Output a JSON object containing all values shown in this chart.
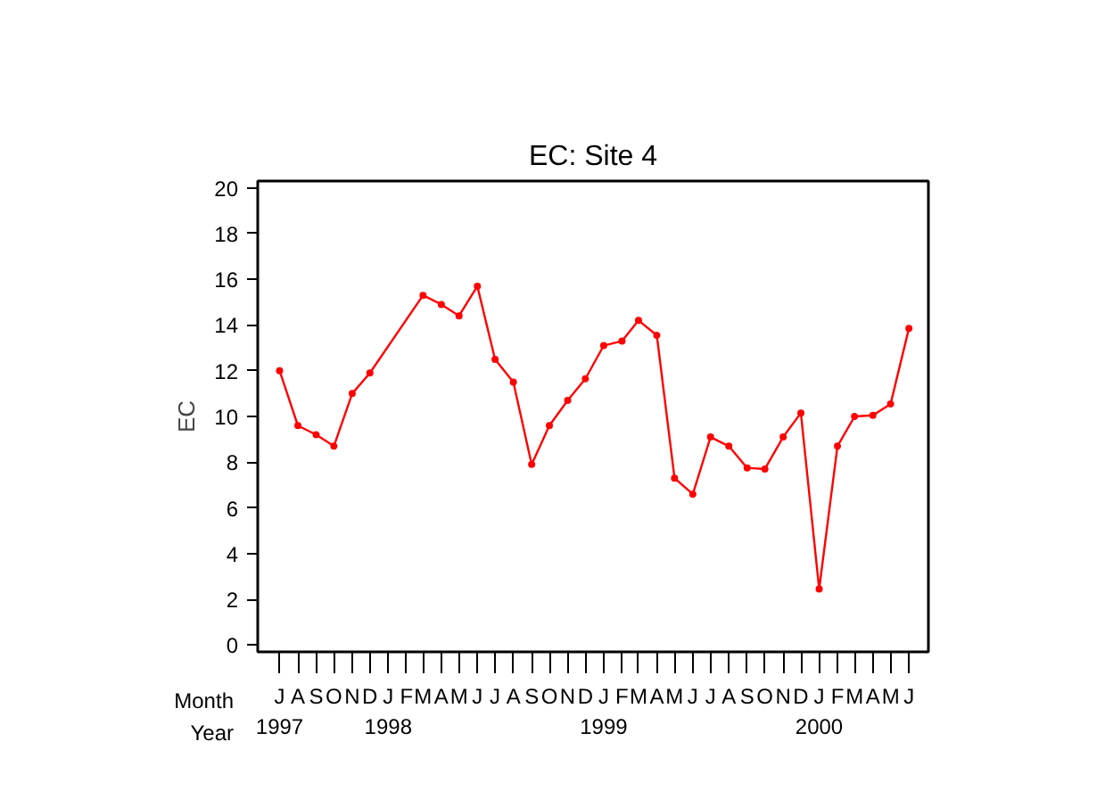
{
  "chart_data": {
    "type": "line",
    "title": "EC: Site 4",
    "ylabel": "EC",
    "annotations": [
      "Month",
      "Year"
    ],
    "x": [
      "1997-07",
      "1997-08",
      "1997-09",
      "1997-10",
      "1997-11",
      "1997-12",
      "1998-03",
      "1998-04",
      "1998-05",
      "1998-06",
      "1998-07",
      "1998-08",
      "1998-09",
      "1998-10",
      "1998-11",
      "1998-12",
      "1999-01",
      "1999-02",
      "1999-03",
      "1999-04",
      "1999-05",
      "1999-06",
      "1999-07",
      "1999-08",
      "1999-09",
      "1999-10",
      "1999-11",
      "1999-12",
      "2000-01",
      "2000-02",
      "2000-03",
      "2000-04",
      "2000-05",
      "2000-06"
    ],
    "series": [
      {
        "color": "#ff0000",
        "values": [
          12.0,
          9.6,
          9.2,
          8.7,
          11.0,
          11.9,
          15.3,
          14.9,
          14.4,
          15.7,
          12.5,
          11.5,
          7.9,
          9.6,
          10.7,
          11.65,
          13.1,
          13.3,
          14.2,
          13.55,
          7.3,
          6.6,
          9.1,
          8.7,
          7.75,
          7.7,
          9.1,
          10.15,
          2.45,
          8.7,
          10.0,
          10.05,
          10.55,
          13.85
        ]
      }
    ],
    "xlim": [
      "1997-05-25",
      "2000-07-04"
    ],
    "xticks": [
      {
        "value": "1997-07",
        "label": "J\n1997"
      },
      {
        "value": "1997-08",
        "label": "A"
      },
      {
        "value": "1997-09",
        "label": "S"
      },
      {
        "value": "1997-10",
        "label": "O"
      },
      {
        "value": "1997-11",
        "label": "N"
      },
      {
        "value": "1997-12",
        "label": "D"
      },
      {
        "value": "1998-01",
        "label": "J\n1998"
      },
      {
        "value": "1998-02",
        "label": "F"
      },
      {
        "value": "1998-03",
        "label": "M"
      },
      {
        "value": "1998-04",
        "label": "A"
      },
      {
        "value": "1998-05",
        "label": "M"
      },
      {
        "value": "1998-06",
        "label": "J"
      },
      {
        "value": "1998-07",
        "label": "J"
      },
      {
        "value": "1998-08",
        "label": "A"
      },
      {
        "value": "1998-09",
        "label": "S"
      },
      {
        "value": "1998-10",
        "label": "O"
      },
      {
        "value": "1998-11",
        "label": "N"
      },
      {
        "value": "1998-12",
        "label": "D"
      },
      {
        "value": "1999-01",
        "label": "J\n1999"
      },
      {
        "value": "1999-02",
        "label": "F"
      },
      {
        "value": "1999-03",
        "label": "M"
      },
      {
        "value": "1999-04",
        "label": "A"
      },
      {
        "value": "1999-05",
        "label": "M"
      },
      {
        "value": "1999-06",
        "label": "J"
      },
      {
        "value": "1999-07",
        "label": "J"
      },
      {
        "value": "1999-08",
        "label": "A"
      },
      {
        "value": "1999-09",
        "label": "S"
      },
      {
        "value": "1999-10",
        "label": "O"
      },
      {
        "value": "1999-11",
        "label": "N"
      },
      {
        "value": "1999-12",
        "label": "D"
      },
      {
        "value": "2000-01",
        "label": "J\n2000"
      },
      {
        "value": "2000-02",
        "label": "F"
      },
      {
        "value": "2000-03",
        "label": "M"
      },
      {
        "value": "2000-04",
        "label": "A"
      },
      {
        "value": "2000-05",
        "label": "M"
      },
      {
        "value": "2000-06",
        "label": "J"
      }
    ],
    "ylim": [
      -0.3,
      20.3
    ],
    "yticks": [
      0,
      2,
      4,
      6,
      8,
      10,
      12,
      14,
      16,
      18,
      20
    ],
    "grid": false,
    "marker": "circle",
    "line_style": "solid"
  }
}
